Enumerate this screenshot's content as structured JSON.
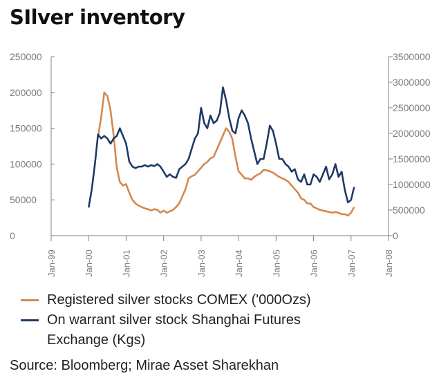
{
  "title": "SIlver inventory",
  "source": "Source: Bloomberg; Mirae Asset Sharekhan",
  "colors": {
    "comex": "#d4884f",
    "shanghai": "#1d3a66",
    "axis": "#7f7f7f",
    "tick_text": "#7a7a7a"
  },
  "chart_data": {
    "type": "line",
    "title": "SIlver inventory",
    "x_ticks": [
      "Jan-99",
      "Jan-00",
      "Jan-01",
      "Jan-02",
      "Jan-03",
      "Jan-04",
      "Jan-05",
      "Jan-06",
      "Jan-07",
      "Jan-08"
    ],
    "xlim": [
      "1999-01",
      "2008-01"
    ],
    "y_left": {
      "lim": [
        0,
        250000
      ],
      "ticks": [
        "0",
        "50000",
        "100000",
        "150000",
        "200000",
        "250000"
      ]
    },
    "y_right": {
      "lim": [
        0,
        3500000
      ],
      "ticks": [
        "0",
        "500000",
        "1000000",
        "1500000",
        "2000000",
        "2500000",
        "3000000",
        "3500000"
      ]
    },
    "grid": false,
    "legend_position": "bottom",
    "series": [
      {
        "name": "Registered silver stocks COMEX ('000Ozs)",
        "axis": "left",
        "color": "#d4884f",
        "x": [
          "2000-04",
          "2000-05",
          "2000-06",
          "2000-07",
          "2000-08",
          "2000-09",
          "2000-10",
          "2000-11",
          "2000-12",
          "2001-01",
          "2001-02",
          "2001-03",
          "2001-04",
          "2001-05",
          "2001-06",
          "2001-07",
          "2001-08",
          "2001-09",
          "2001-10",
          "2001-11",
          "2001-12",
          "2002-01",
          "2002-02",
          "2002-03",
          "2002-04",
          "2002-05",
          "2002-06",
          "2002-07",
          "2002-08",
          "2002-09",
          "2002-10",
          "2002-11",
          "2002-12",
          "2003-01",
          "2003-02",
          "2003-03",
          "2003-04",
          "2003-05",
          "2003-06",
          "2003-07",
          "2003-08",
          "2003-09",
          "2003-10",
          "2003-11",
          "2003-12",
          "2004-01",
          "2004-02",
          "2004-03",
          "2004-04",
          "2004-05",
          "2004-06",
          "2004-07",
          "2004-08",
          "2004-09",
          "2004-10",
          "2004-11",
          "2004-12",
          "2005-01",
          "2005-02",
          "2005-03",
          "2005-04",
          "2005-05",
          "2005-06",
          "2005-07",
          "2005-08",
          "2005-09",
          "2005-10",
          "2005-11",
          "2005-12",
          "2006-01",
          "2006-02",
          "2006-03",
          "2006-04",
          "2006-05",
          "2006-06",
          "2006-07",
          "2006-08",
          "2006-09",
          "2006-10",
          "2006-11",
          "2006-12",
          "2007-01",
          "2007-02"
        ],
        "values": [
          138000,
          165000,
          200000,
          195000,
          175000,
          140000,
          95000,
          75000,
          70000,
          72000,
          60000,
          50000,
          45000,
          42000,
          40000,
          38000,
          37000,
          35000,
          37000,
          36000,
          32000,
          35000,
          32000,
          34000,
          36000,
          40000,
          45000,
          55000,
          65000,
          80000,
          83000,
          85000,
          90000,
          95000,
          100000,
          103000,
          108000,
          110000,
          120000,
          130000,
          140000,
          150000,
          145000,
          135000,
          110000,
          90000,
          85000,
          80000,
          80000,
          78000,
          82000,
          85000,
          87000,
          92000,
          91000,
          90000,
          88000,
          85000,
          82000,
          80000,
          78000,
          75000,
          70000,
          65000,
          60000,
          52000,
          50000,
          45000,
          45000,
          40000,
          38000,
          36000,
          35000,
          34000,
          33000,
          32000,
          33000,
          32000,
          30000,
          30000,
          28000,
          32000,
          40000
        ]
      },
      {
        "name": "On warrant silver stock Shanghai Futures Exchange (Kgs)",
        "axis": "right",
        "color": "#1d3a66",
        "x": [
          "2000-01",
          "2000-02",
          "2000-03",
          "2000-04",
          "2000-05",
          "2000-06",
          "2000-07",
          "2000-08",
          "2000-09",
          "2000-10",
          "2000-11",
          "2000-12",
          "2001-01",
          "2001-02",
          "2001-03",
          "2001-04",
          "2001-05",
          "2001-06",
          "2001-07",
          "2001-08",
          "2001-09",
          "2001-10",
          "2001-11",
          "2001-12",
          "2002-01",
          "2002-02",
          "2002-03",
          "2002-04",
          "2002-05",
          "2002-06",
          "2002-07",
          "2002-08",
          "2002-09",
          "2002-10",
          "2002-11",
          "2002-12",
          "2003-01",
          "2003-02",
          "2003-03",
          "2003-04",
          "2003-05",
          "2003-06",
          "2003-07",
          "2003-08",
          "2003-09",
          "2003-10",
          "2003-11",
          "2003-12",
          "2004-01",
          "2004-02",
          "2004-03",
          "2004-04",
          "2004-05",
          "2004-06",
          "2004-07",
          "2004-08",
          "2004-09",
          "2004-10",
          "2004-11",
          "2004-12",
          "2005-01",
          "2005-02",
          "2005-03",
          "2005-04",
          "2005-05",
          "2005-06",
          "2005-07",
          "2005-08",
          "2005-09",
          "2005-10",
          "2005-11",
          "2005-12",
          "2006-01",
          "2006-02",
          "2006-03",
          "2006-04",
          "2006-05",
          "2006-06",
          "2006-07",
          "2006-08",
          "2006-09",
          "2006-10",
          "2006-11",
          "2006-12",
          "2007-01",
          "2007-02"
        ],
        "values": [
          550000,
          900000,
          1400000,
          1980000,
          1900000,
          1950000,
          1900000,
          1800000,
          1900000,
          1950000,
          2100000,
          1950000,
          1800000,
          1450000,
          1350000,
          1320000,
          1350000,
          1350000,
          1380000,
          1350000,
          1380000,
          1360000,
          1400000,
          1350000,
          1250000,
          1150000,
          1200000,
          1150000,
          1130000,
          1300000,
          1350000,
          1400000,
          1500000,
          1700000,
          1900000,
          2000000,
          2500000,
          2200000,
          2100000,
          2350000,
          2200000,
          2250000,
          2400000,
          2900000,
          2650000,
          2300000,
          2050000,
          2000000,
          2300000,
          2450000,
          2350000,
          2200000,
          1900000,
          1650000,
          1400000,
          1500000,
          1500000,
          1800000,
          2150000,
          2050000,
          1800000,
          1500000,
          1500000,
          1400000,
          1350000,
          1250000,
          1300000,
          1100000,
          1050000,
          1200000,
          1000000,
          1000000,
          1200000,
          1150000,
          1050000,
          1200000,
          1350000,
          1100000,
          1200000,
          1400000,
          1150000,
          1250000,
          900000,
          650000,
          700000,
          950000
        ]
      }
    ]
  }
}
